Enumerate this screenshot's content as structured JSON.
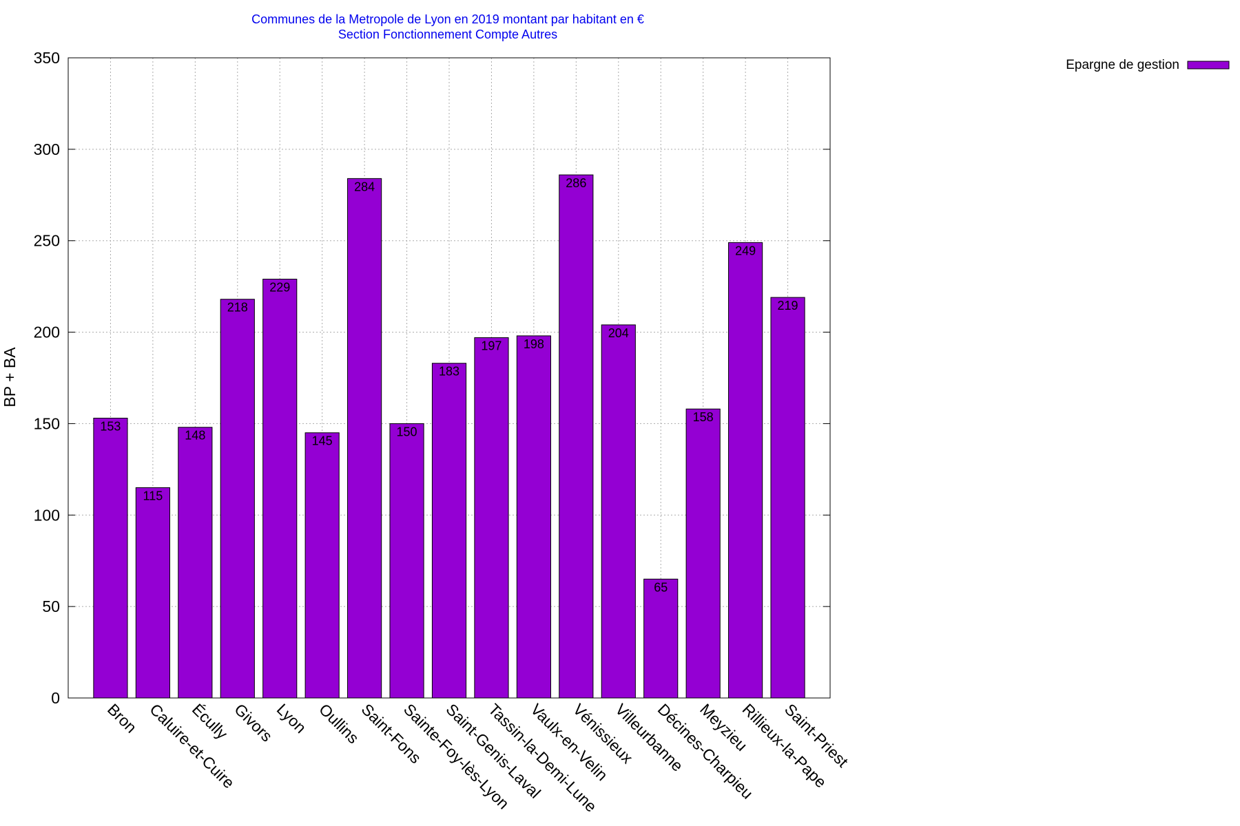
{
  "chart_data": {
    "type": "bar",
    "title": "Communes de la Metropole de Lyon en 2019 montant par habitant en €",
    "subtitle": "Section Fonctionnement Compte Autres",
    "y_label": "BP + BA",
    "categories": [
      "Bron",
      "Caluire-et-Cuire",
      "Écully",
      "Givors",
      "Lyon",
      "Oullins",
      "Saint-Fons",
      "Sainte-Foy-lès-Lyon",
      "Saint-Genis-Laval",
      "Tassin-la-Demi-Lune",
      "Vaulx-en-Velin",
      "Vénissieux",
      "Villeurbanne",
      "Décines-Charpieu",
      "Meyzieu",
      "Rillieux-la-Pape",
      "Saint-Priest"
    ],
    "series": [
      {
        "name": "Epargne de gestion",
        "color": "#9400d3",
        "values": [
          153,
          115,
          148,
          218,
          229,
          145,
          284,
          150,
          183,
          197,
          198,
          286,
          204,
          65,
          158,
          249,
          219
        ]
      }
    ],
    "ylim": [
      0,
      350
    ],
    "yticks": [
      0,
      50,
      100,
      150,
      200,
      250,
      300,
      350
    ],
    "grid": true,
    "legend": "top-right"
  }
}
